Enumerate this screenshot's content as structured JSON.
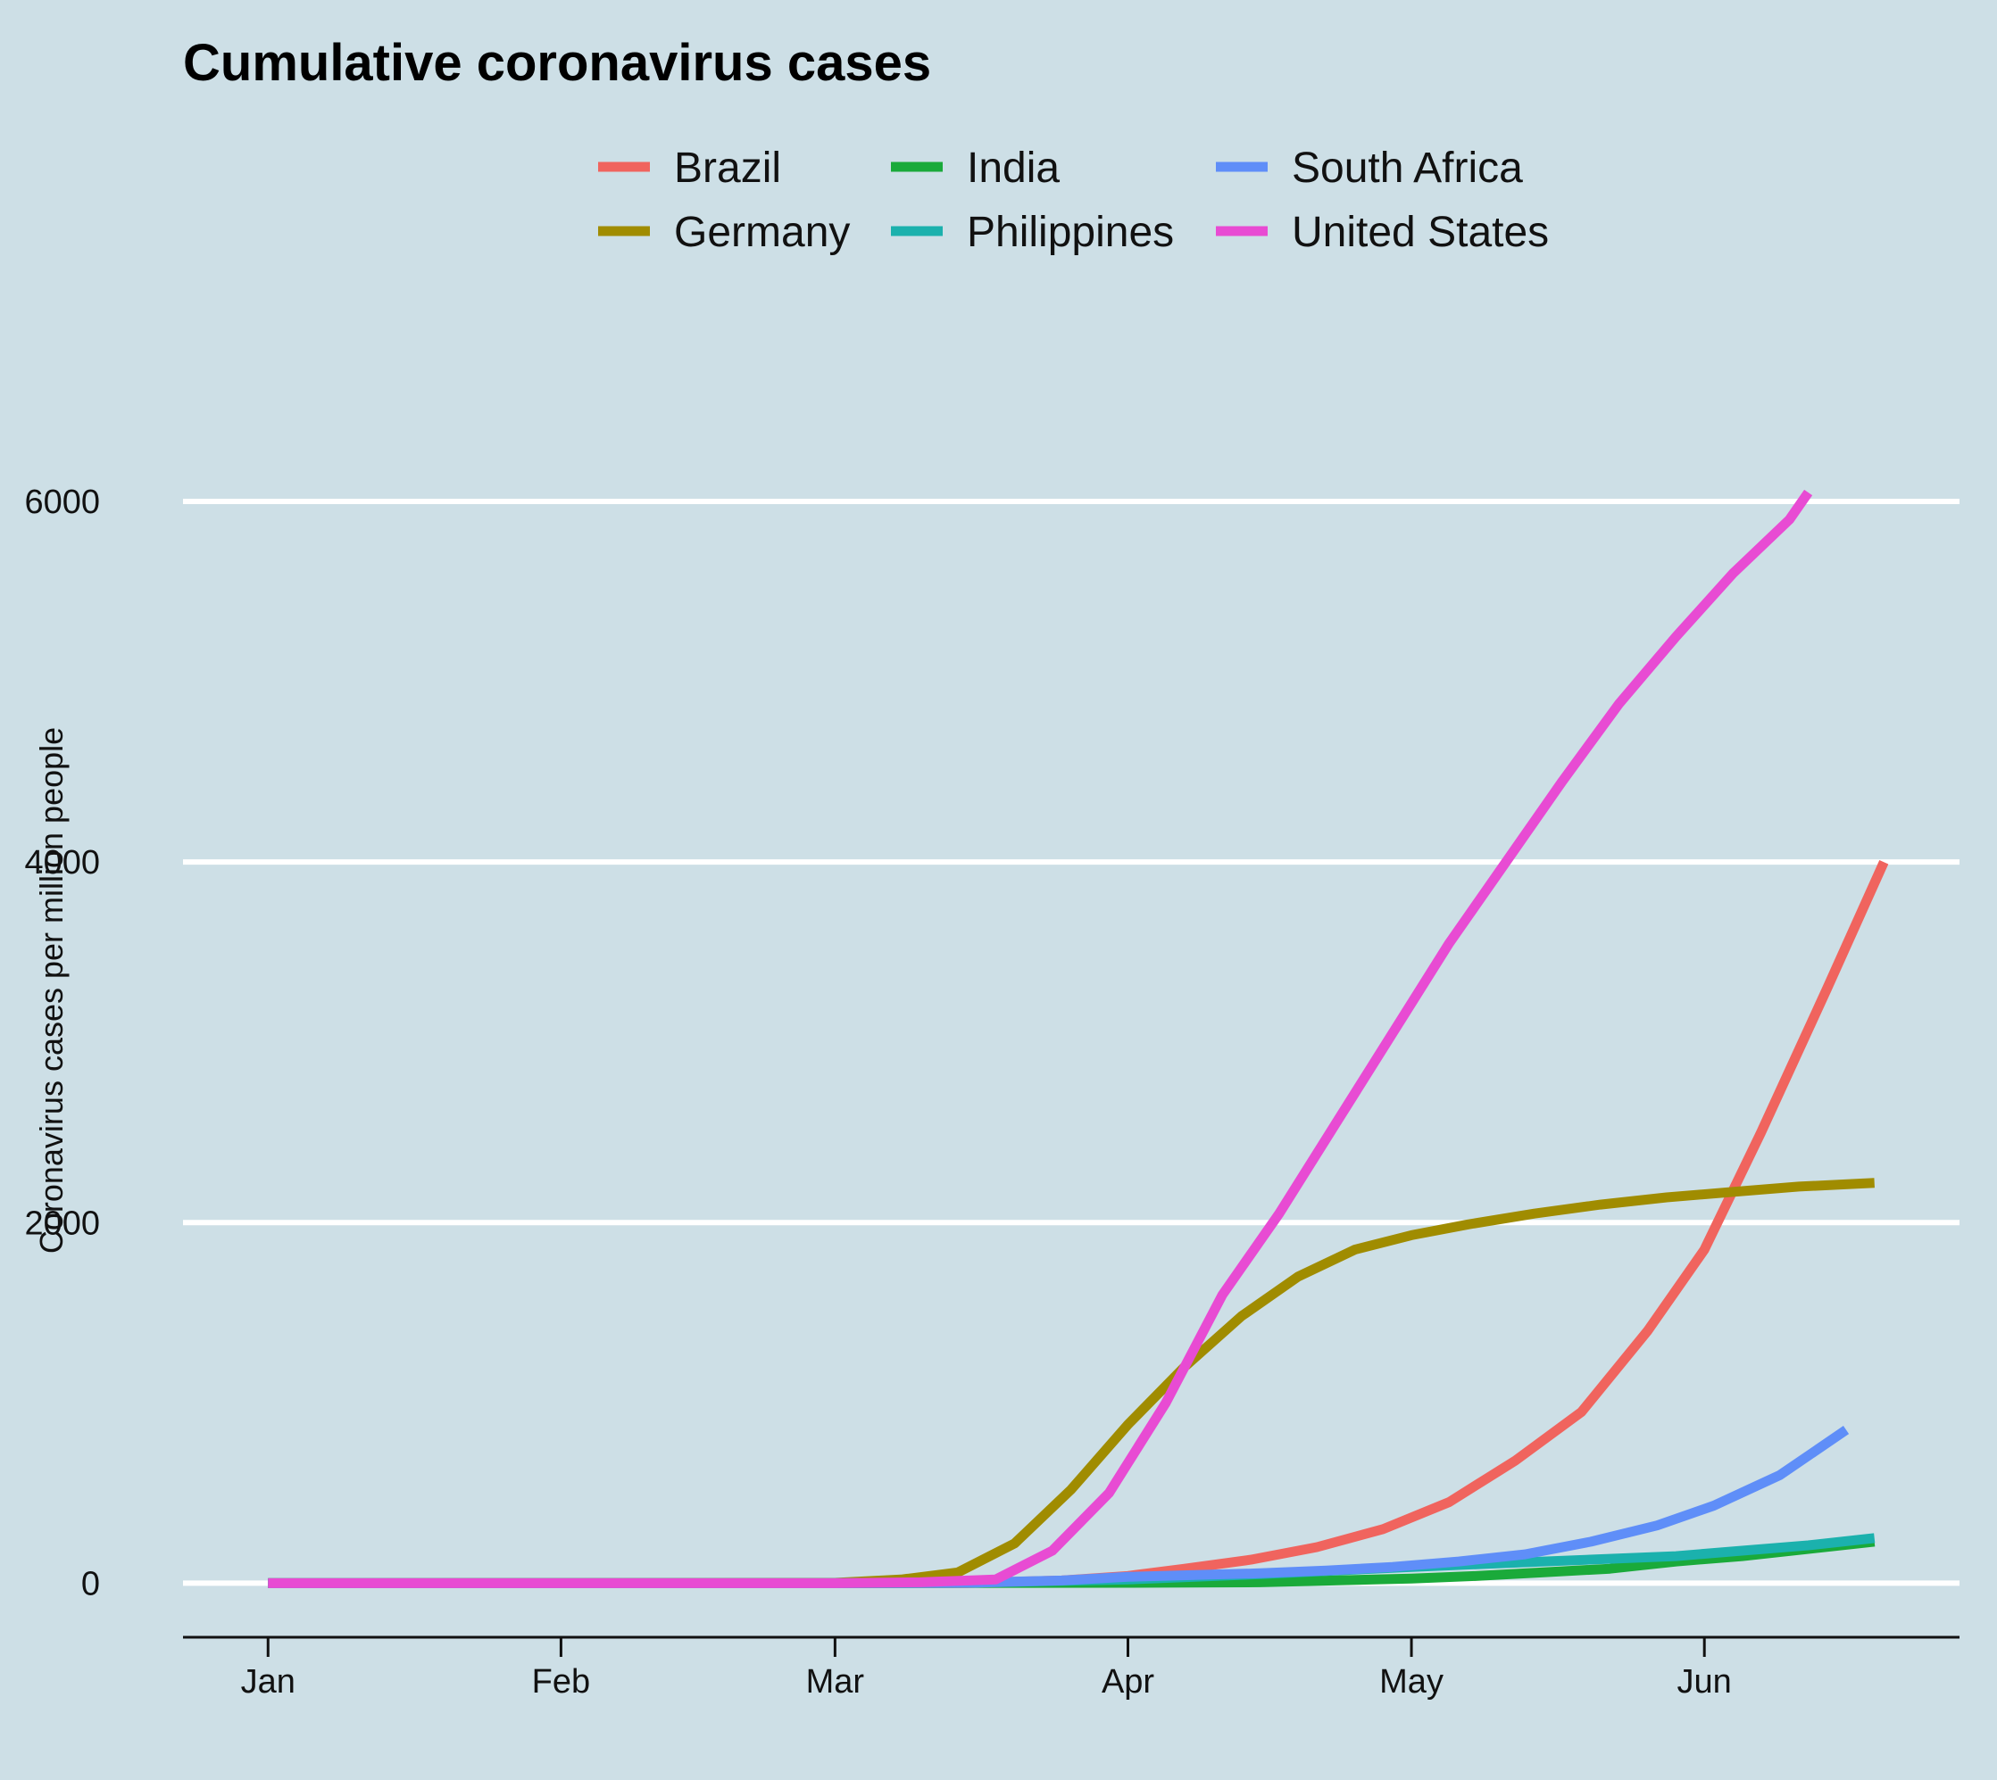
{
  "chart_data": {
    "type": "line",
    "title": "Cumulative coronavirus cases",
    "xlabel": "",
    "ylabel": "Coronavirus cases per million people",
    "x_unit": "date (2020)",
    "xlim": [
      "2019-12-23",
      "2020-06-28"
    ],
    "ylim": [
      -300,
      7000
    ],
    "x_ticks": [
      {
        "date": "2020-01-01",
        "label": "Jan"
      },
      {
        "date": "2020-02-01",
        "label": "Feb"
      },
      {
        "date": "2020-03-01",
        "label": "Mar"
      },
      {
        "date": "2020-04-01",
        "label": "Apr"
      },
      {
        "date": "2020-05-01",
        "label": "May"
      },
      {
        "date": "2020-06-01",
        "label": "Jun"
      }
    ],
    "y_ticks": [
      {
        "value": 0,
        "label": "0"
      },
      {
        "value": 2000,
        "label": "2000"
      },
      {
        "value": 4000,
        "label": "4000"
      },
      {
        "value": 6000,
        "label": "6000"
      }
    ],
    "grid": "horizontal",
    "legend_position": "top",
    "series": [
      {
        "name": "Brazil",
        "color": "#f0645e",
        "points": [
          [
            "2020-01-01",
            0
          ],
          [
            "2020-03-01",
            0
          ],
          [
            "2020-03-15",
            1
          ],
          [
            "2020-03-25",
            15
          ],
          [
            "2020-04-01",
            40
          ],
          [
            "2020-04-07",
            80
          ],
          [
            "2020-04-14",
            130
          ],
          [
            "2020-04-21",
            200
          ],
          [
            "2020-04-28",
            300
          ],
          [
            "2020-05-05",
            450
          ],
          [
            "2020-05-12",
            680
          ],
          [
            "2020-05-19",
            950
          ],
          [
            "2020-05-26",
            1400
          ],
          [
            "2020-06-01",
            1850
          ],
          [
            "2020-06-07",
            2500
          ],
          [
            "2020-06-14",
            3300
          ],
          [
            "2020-06-20",
            4000
          ]
        ]
      },
      {
        "name": "Germany",
        "color": "#a08c00",
        "points": [
          [
            "2020-01-01",
            0
          ],
          [
            "2020-03-01",
            2
          ],
          [
            "2020-03-08",
            20
          ],
          [
            "2020-03-14",
            60
          ],
          [
            "2020-03-20",
            220
          ],
          [
            "2020-03-26",
            520
          ],
          [
            "2020-04-01",
            880
          ],
          [
            "2020-04-07",
            1200
          ],
          [
            "2020-04-13",
            1480
          ],
          [
            "2020-04-19",
            1700
          ],
          [
            "2020-04-25",
            1850
          ],
          [
            "2020-05-01",
            1930
          ],
          [
            "2020-05-07",
            1990
          ],
          [
            "2020-05-14",
            2050
          ],
          [
            "2020-05-21",
            2100
          ],
          [
            "2020-05-28",
            2140
          ],
          [
            "2020-06-04",
            2170
          ],
          [
            "2020-06-11",
            2200
          ],
          [
            "2020-06-19",
            2220
          ]
        ]
      },
      {
        "name": "India",
        "color": "#1aaa3a",
        "points": [
          [
            "2020-01-01",
            0
          ],
          [
            "2020-03-01",
            0
          ],
          [
            "2020-04-01",
            2
          ],
          [
            "2020-04-15",
            5
          ],
          [
            "2020-05-01",
            25
          ],
          [
            "2020-05-08",
            40
          ],
          [
            "2020-05-15",
            60
          ],
          [
            "2020-05-22",
            80
          ],
          [
            "2020-05-29",
            120
          ],
          [
            "2020-06-05",
            150
          ],
          [
            "2020-06-12",
            190
          ],
          [
            "2020-06-19",
            230
          ]
        ]
      },
      {
        "name": "Philippines",
        "color": "#1bb1ad",
        "points": [
          [
            "2020-01-01",
            0
          ],
          [
            "2020-03-01",
            0
          ],
          [
            "2020-03-15",
            2
          ],
          [
            "2020-04-01",
            20
          ],
          [
            "2020-04-15",
            50
          ],
          [
            "2020-05-01",
            90
          ],
          [
            "2020-05-15",
            120
          ],
          [
            "2020-05-29",
            150
          ],
          [
            "2020-06-05",
            180
          ],
          [
            "2020-06-12",
            210
          ],
          [
            "2020-06-19",
            250
          ]
        ]
      },
      {
        "name": "South Africa",
        "color": "#5f8ef8",
        "points": [
          [
            "2020-01-01",
            0
          ],
          [
            "2020-03-01",
            0
          ],
          [
            "2020-03-15",
            2
          ],
          [
            "2020-03-25",
            15
          ],
          [
            "2020-04-01",
            35
          ],
          [
            "2020-04-15",
            55
          ],
          [
            "2020-04-22",
            70
          ],
          [
            "2020-04-29",
            90
          ],
          [
            "2020-05-06",
            120
          ],
          [
            "2020-05-13",
            160
          ],
          [
            "2020-05-20",
            230
          ],
          [
            "2020-05-27",
            320
          ],
          [
            "2020-06-02",
            430
          ],
          [
            "2020-06-09",
            600
          ],
          [
            "2020-06-16",
            850
          ]
        ]
      },
      {
        "name": "United States",
        "color": "#e84bd3",
        "points": [
          [
            "2020-01-01",
            0
          ],
          [
            "2020-03-01",
            0
          ],
          [
            "2020-03-10",
            5
          ],
          [
            "2020-03-18",
            20
          ],
          [
            "2020-03-24",
            180
          ],
          [
            "2020-03-30",
            500
          ],
          [
            "2020-04-05",
            1000
          ],
          [
            "2020-04-11",
            1600
          ],
          [
            "2020-04-17",
            2050
          ],
          [
            "2020-04-23",
            2550
          ],
          [
            "2020-04-29",
            3050
          ],
          [
            "2020-05-05",
            3550
          ],
          [
            "2020-05-11",
            4000
          ],
          [
            "2020-05-17",
            4450
          ],
          [
            "2020-05-23",
            4880
          ],
          [
            "2020-05-29",
            5250
          ],
          [
            "2020-06-04",
            5600
          ],
          [
            "2020-06-10",
            5900
          ],
          [
            "2020-06-12",
            6050
          ]
        ]
      }
    ]
  }
}
